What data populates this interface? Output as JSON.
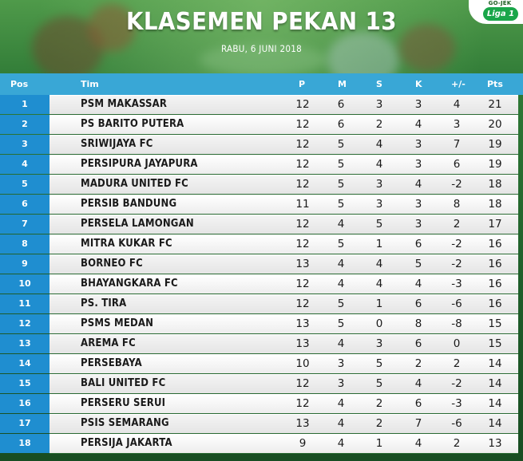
{
  "header": {
    "title": "KLASEMEN PEKAN 13",
    "subtitle": "RABU, 6 JUNI 2018"
  },
  "logo": {
    "brand_top": "GO-JEK",
    "brand_pill": "Liga 1"
  },
  "table": {
    "columns": [
      "Pos",
      "Tim",
      "P",
      "M",
      "S",
      "K",
      "+/-",
      "Pts"
    ],
    "rows": [
      [
        "1",
        "PSM MAKASSAR",
        "12",
        "6",
        "3",
        "3",
        "4",
        "21"
      ],
      [
        "2",
        "PS BARITO PUTERA",
        "12",
        "6",
        "2",
        "4",
        "3",
        "20"
      ],
      [
        "3",
        "SRIWIJAYA FC",
        "12",
        "5",
        "4",
        "3",
        "7",
        "19"
      ],
      [
        "4",
        "PERSIPURA JAYAPURA",
        "12",
        "5",
        "4",
        "3",
        "6",
        "19"
      ],
      [
        "5",
        "MADURA UNITED FC",
        "12",
        "5",
        "3",
        "4",
        "-2",
        "18"
      ],
      [
        "6",
        "PERSIB BANDUNG",
        "11",
        "5",
        "3",
        "3",
        "8",
        "18"
      ],
      [
        "7",
        "PERSELA LAMONGAN",
        "12",
        "4",
        "5",
        "3",
        "2",
        "17"
      ],
      [
        "8",
        "MITRA KUKAR FC",
        "12",
        "5",
        "1",
        "6",
        "-2",
        "16"
      ],
      [
        "9",
        "BORNEO FC",
        "13",
        "4",
        "4",
        "5",
        "-2",
        "16"
      ],
      [
        "10",
        "BHAYANGKARA FC",
        "12",
        "4",
        "4",
        "4",
        "-3",
        "16"
      ],
      [
        "11",
        "PS. TIRA",
        "12",
        "5",
        "1",
        "6",
        "-6",
        "16"
      ],
      [
        "12",
        "PSMS MEDAN",
        "13",
        "5",
        "0",
        "8",
        "-8",
        "15"
      ],
      [
        "13",
        "AREMA FC",
        "13",
        "4",
        "3",
        "6",
        "0",
        "15"
      ],
      [
        "14",
        "PERSEBAYA",
        "10",
        "3",
        "5",
        "2",
        "2",
        "14"
      ],
      [
        "15",
        "BALI UNITED FC",
        "12",
        "3",
        "5",
        "4",
        "-2",
        "14"
      ],
      [
        "16",
        "PERSERU SERUI",
        "12",
        "4",
        "2",
        "6",
        "-3",
        "14"
      ],
      [
        "17",
        "PSIS SEMARANG",
        "13",
        "4",
        "2",
        "7",
        "-6",
        "14"
      ],
      [
        "18",
        "PERSIJA JAKARTA",
        "9",
        "4",
        "1",
        "4",
        "2",
        "13"
      ]
    ]
  }
}
